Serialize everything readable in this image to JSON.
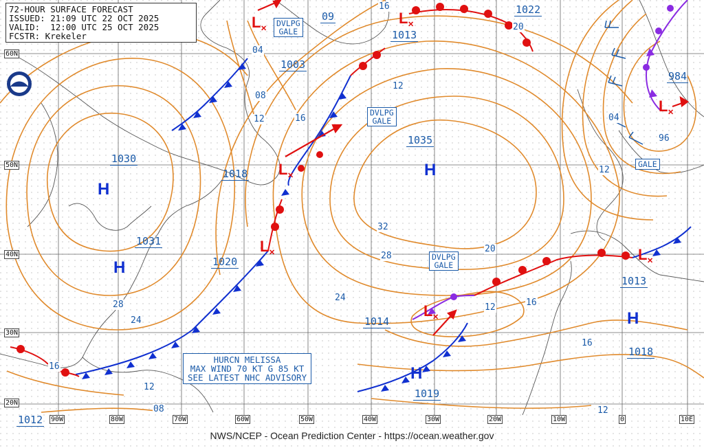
{
  "header": {
    "title": "72-HOUR SURFACE FORECAST",
    "issued": "ISSUED: 21:09 UTC 22 OCT 2025",
    "valid": "VALID:  12:00 UTC 25 OCT 2025",
    "forecaster": "FCSTR: Krekeler"
  },
  "footer": "NWS/NCEP - Ocean Prediction Center - https://ocean.weather.gov",
  "logo": "noaa-logo",
  "colors": {
    "isobar": "#e08a2c",
    "cold_front": "#1030d0",
    "warm_front": "#e01010",
    "occluded_front": "#8a2be2",
    "label": "#1a5aa8",
    "grid": "#555555"
  },
  "latitude_labels": [
    "60N",
    "50N",
    "40N",
    "30N",
    "20N"
  ],
  "longitude_labels": [
    "90W",
    "80W",
    "70W",
    "60W",
    "50W",
    "40W",
    "30W",
    "20W",
    "10W",
    "0",
    "10E"
  ],
  "high_pressure": [
    {
      "symbol": "H",
      "pressure": "1030"
    },
    {
      "symbol": "H",
      "pressure": "1031"
    },
    {
      "symbol": "H",
      "pressure": "1035"
    },
    {
      "symbol": "H",
      "pressure": "1019"
    },
    {
      "symbol": "H",
      "pressure": "1018"
    }
  ],
  "low_pressure": [
    {
      "symbol": "L",
      "pressure": "1003"
    },
    {
      "symbol": "L",
      "pressure": "1013"
    },
    {
      "symbol": "L",
      "pressure": "1018"
    },
    {
      "symbol": "L",
      "pressure": "1020"
    },
    {
      "symbol": "L",
      "pressure": "1014"
    },
    {
      "symbol": "L",
      "pressure": "984"
    },
    {
      "symbol": "L",
      "pressure": "1013"
    }
  ],
  "pressure_labels_other": [
    "09",
    "1022",
    "1012"
  ],
  "isobar_values": [
    "04",
    "08",
    "12",
    "16",
    "20",
    "24",
    "28",
    "32",
    "96",
    "12",
    "16",
    "20",
    "24",
    "28",
    "16",
    "12",
    "04",
    "12",
    "16",
    "12",
    "16",
    "08",
    "12"
  ],
  "warnings": [
    {
      "line1": "DVLPG",
      "line2": "GALE"
    },
    {
      "line1": "DVLPG",
      "line2": "GALE"
    },
    {
      "line1": "DVLPG",
      "line2": "GALE"
    },
    {
      "line1": "GALE",
      "line2": ""
    }
  ],
  "hurricane": {
    "line1": "HURCN MELISSA",
    "line2": "MAX WIND 70 KT G 85 KT",
    "line3": "SEE LATEST NHC ADVISORY"
  }
}
